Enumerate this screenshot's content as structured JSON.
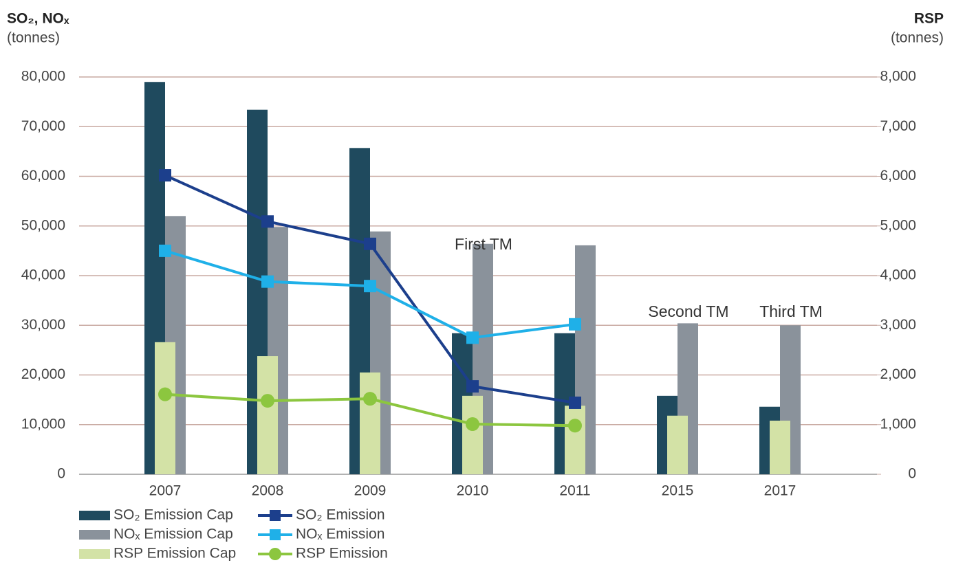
{
  "chart_data": {
    "type": "bar-line",
    "y_axis_title": "SO₂, NOₓ",
    "y_axis_unit": "(tonnes)",
    "y2_axis_title": "RSP",
    "y2_axis_unit": "(tonnes)",
    "categories": [
      "2007",
      "2008",
      "2009",
      "2010",
      "2011",
      "2015",
      "2017"
    ],
    "series": [
      {
        "name": "SO₂ Emission Cap",
        "kind": "bar",
        "color": "#1f4a5e",
        "values": [
          79000,
          73400,
          65700,
          28400,
          28400,
          15800,
          13600
        ]
      },
      {
        "name": "NOₓ Emission Cap",
        "kind": "bar",
        "color": "#8a929b",
        "values": [
          52000,
          49800,
          48900,
          46400,
          46100,
          30400,
          30000
        ]
      },
      {
        "name": "RSP Emission Cap",
        "kind": "bar",
        "axis": "y2",
        "color": "#d3e2a6",
        "values": [
          2660,
          2380,
          2050,
          1580,
          1380,
          1180,
          1080
        ]
      },
      {
        "name": "SO₂ Emission",
        "kind": "line",
        "color": "#1c3f8c",
        "values": [
          60200,
          50900,
          46400,
          17700,
          14400,
          null,
          null
        ]
      },
      {
        "name": "NOₓ Emission",
        "kind": "line",
        "color": "#1fb0e8",
        "values": [
          45000,
          38800,
          37900,
          27500,
          30200,
          null,
          null
        ]
      },
      {
        "name": "RSP Emission",
        "kind": "line",
        "axis": "y2",
        "color": "#8cc63f",
        "values": [
          1610,
          1480,
          1520,
          1010,
          980,
          null,
          null
        ]
      }
    ],
    "annotations": [
      {
        "text": "First TM",
        "category": "2010"
      },
      {
        "text": "Second TM",
        "category": "2015"
      },
      {
        "text": "Third TM",
        "category": "2017"
      }
    ],
    "ylim": [
      0,
      80000
    ],
    "yticks": [
      0,
      {
        "value": 10000,
        "label": "10,000"
      },
      {
        "value": 20000,
        "label": "20,000"
      },
      {
        "value": 30000,
        "label": "30,000"
      },
      {
        "value": 40000,
        "label": "40,000"
      },
      {
        "value": 50000,
        "label": "50,000"
      },
      {
        "value": 60000,
        "label": "60,000"
      },
      {
        "value": 70000,
        "label": "70,000"
      },
      {
        "value": 80000,
        "label": "80,000"
      }
    ],
    "y2lim": [
      0,
      8000
    ],
    "y2ticks": [
      0,
      {
        "value": 1000,
        "label": "1,000"
      },
      {
        "value": 2000,
        "label": "2,000"
      },
      {
        "value": 3000,
        "label": "3,000"
      },
      {
        "value": 4000,
        "label": "4,000"
      },
      {
        "value": 5000,
        "label": "5,000"
      },
      {
        "value": 6000,
        "label": "6,000"
      },
      {
        "value": 7000,
        "label": "7,000"
      },
      {
        "value": 8000,
        "label": "8,000"
      }
    ],
    "grid": true,
    "legend": "bottom-left"
  }
}
